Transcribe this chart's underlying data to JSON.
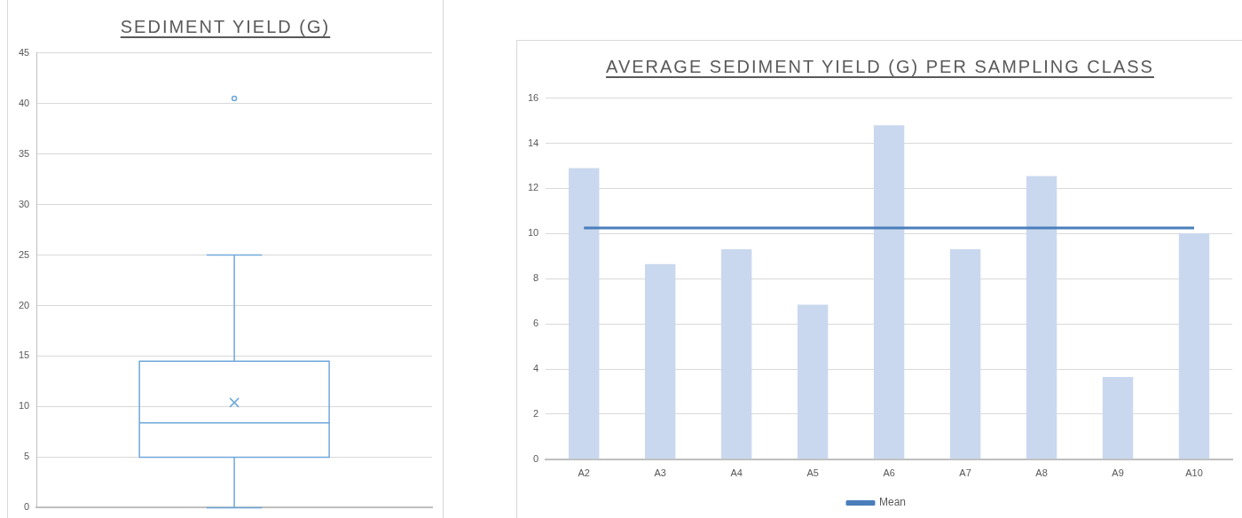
{
  "chart_data": [
    {
      "type": "box",
      "title": "SEDIMENT YIELD (G)",
      "categories": [
        null
      ],
      "color": "#6fa8dc",
      "boxes": [
        {
          "low": 0,
          "q1": 5,
          "median": 8.4,
          "q3": 14.5,
          "high": 25,
          "mean": 10.4,
          "outliers": [
            40.5
          ]
        }
      ],
      "ylim": [
        0,
        45
      ],
      "yticks": [
        0,
        5,
        10,
        15,
        20,
        25,
        30,
        35,
        40,
        45
      ],
      "grid": "y",
      "tick_labels": "y"
    },
    {
      "type": "bar",
      "title": "AVERAGE SEDIMENT YIELD (G) PER SAMPLING CLASS",
      "categories": [
        "A2",
        "A3",
        "A4",
        "A5",
        "A6",
        "A7",
        "A8",
        "A9",
        "A10"
      ],
      "series": [
        {
          "color": "#c9d8ee",
          "values": [
            12.9,
            8.65,
            9.3,
            6.85,
            14.8,
            9.3,
            12.55,
            3.65,
            10.0
          ]
        },
        {
          "type": "line",
          "name": "Mean",
          "color": "#4a7ebb",
          "values": [
            10.25,
            10.25,
            10.25,
            10.25,
            10.25,
            10.25,
            10.25,
            10.25,
            10.25
          ]
        }
      ],
      "ylim": [
        0,
        16
      ],
      "yticks": [
        0,
        2,
        4,
        6,
        8,
        10,
        12,
        14,
        16
      ],
      "grid": "y",
      "legend": "bottom"
    }
  ]
}
